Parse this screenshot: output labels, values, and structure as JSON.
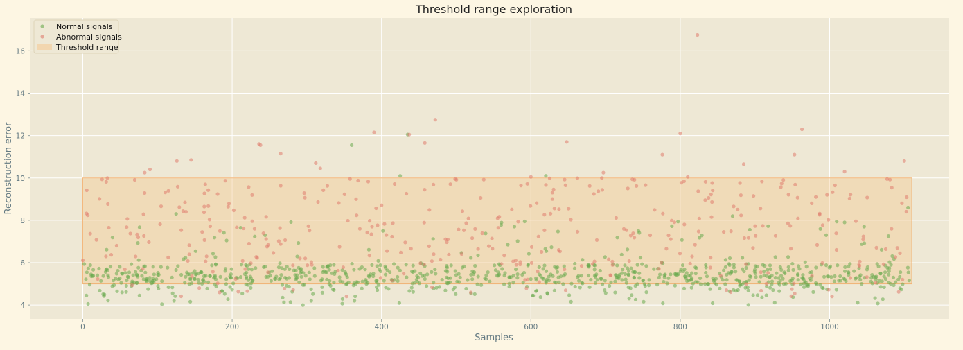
{
  "chart_data": {
    "type": "scatter",
    "title": "Threshold range exploration",
    "xlabel": "Samples",
    "ylabel": "Reconstruction error",
    "xlim": [
      -70,
      1160
    ],
    "ylim": [
      3.35,
      17.55
    ],
    "x_ticks": [
      0,
      200,
      400,
      600,
      800,
      1000
    ],
    "y_ticks": [
      4,
      6,
      8,
      10,
      12,
      14,
      16
    ],
    "grid": true,
    "legend_position": "top-left",
    "threshold_range": {
      "name": "Threshold range",
      "x": [
        0,
        1110
      ],
      "y": [
        5.0,
        10.0
      ],
      "color": "#f5c48a"
    },
    "series": [
      {
        "name": "Normal signals",
        "color": "#6aaa4f",
        "n": 900,
        "x_range": [
          0,
          1110
        ],
        "y_range": [
          4.0,
          12.1
        ],
        "notable_points": [
          [
            360,
            11.55
          ],
          [
            435,
            12.05
          ],
          [
            425,
            10.1
          ],
          [
            620,
            10.1
          ],
          [
            1105,
            8.6
          ],
          [
            125,
            8.3
          ],
          [
            870,
            8.2
          ],
          [
            1020,
            7.9
          ]
        ]
      },
      {
        "name": "Abnormal signals",
        "color": "#e07b6e",
        "n": 360,
        "x_range": [
          0,
          1110
        ],
        "y_range": [
          4.4,
          16.8
        ],
        "notable_points": [
          [
            823,
            16.75
          ],
          [
            472,
            12.75
          ],
          [
            390,
            12.15
          ],
          [
            800,
            12.1
          ],
          [
            963,
            12.3
          ],
          [
            437,
            12.05
          ],
          [
            648,
            11.7
          ],
          [
            236,
            11.6
          ],
          [
            238,
            11.55
          ],
          [
            458,
            11.65
          ],
          [
            265,
            11.15
          ],
          [
            776,
            11.1
          ],
          [
            953,
            11.1
          ],
          [
            1100,
            10.8
          ],
          [
            126,
            10.8
          ],
          [
            145,
            10.85
          ],
          [
            312,
            10.7
          ],
          [
            885,
            10.65
          ],
          [
            90,
            10.4
          ],
          [
            318,
            10.45
          ],
          [
            1020,
            10.3
          ],
          [
            83,
            10.25
          ],
          [
            697,
            10.25
          ],
          [
            33,
            10.0
          ],
          [
            600,
            10.05
          ],
          [
            810,
            10.05
          ],
          [
            695,
            10.0
          ],
          [
            1077,
            9.95
          ]
        ]
      }
    ]
  }
}
